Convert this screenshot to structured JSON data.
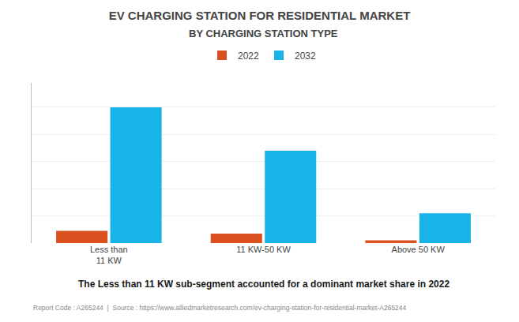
{
  "chart_data": {
    "type": "bar",
    "title": "EV CHARGING STATION FOR RESIDENTIAL MARKET",
    "subtitle": "BY CHARGING STATION TYPE",
    "categories": [
      "Less than\n11 KW",
      "11 KW-50 KW",
      "Above 50 KW"
    ],
    "series": [
      {
        "name": "2022",
        "color": "#D94F1E",
        "values": [
          0.09,
          0.07,
          0.02
        ]
      },
      {
        "name": "2032",
        "color": "#18B4E8",
        "values": [
          1.0,
          0.68,
          0.22
        ]
      }
    ],
    "ylim": [
      0,
      1.18
    ],
    "yticks": [
      0,
      0.2,
      0.4,
      0.6,
      0.8,
      1.0
    ],
    "grid": true,
    "legend": "top",
    "tick_labels": "x",
    "annotations": [
      "The Less than 11 KW sub-segment accounted for a dominant market share in 2022",
      "Report Code : A265244  |  Source : https://www.alliedmarketresearch.com/ev-charging-station-for-residential-market-A265244"
    ]
  }
}
